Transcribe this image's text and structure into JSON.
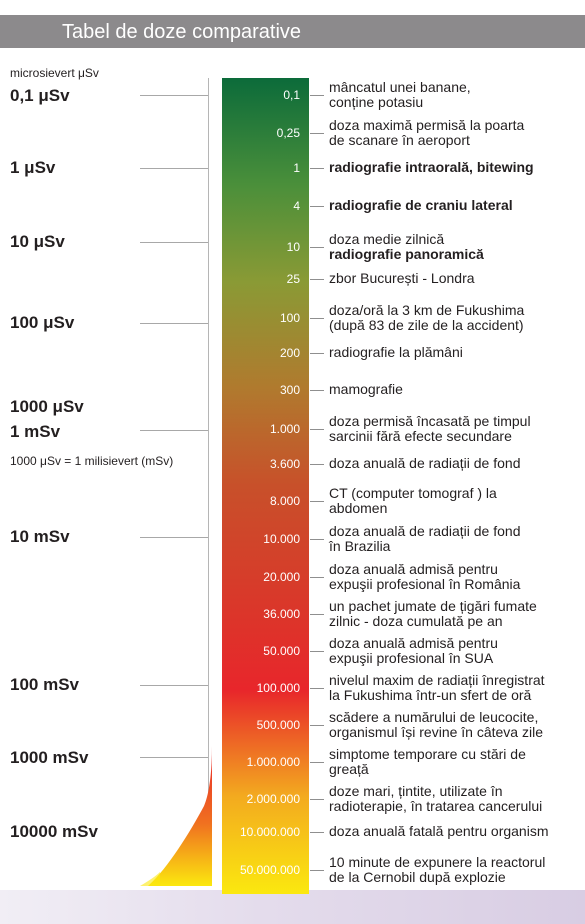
{
  "header": {
    "title": "Tabel de doze comparative"
  },
  "scale": {
    "unit_caption": "microsievert μSv",
    "labels": [
      "0,1 μSv",
      "1 μSv",
      "10 μSv",
      "100 μSv",
      "1000 μSv",
      "1 mSv",
      "10 mSv",
      "100 mSv",
      "1000 mSv",
      "10000 mSv"
    ],
    "conversion_note": "1000 μSv = 1 milisievert (mSv)"
  },
  "chart_data": {
    "type": "table",
    "unit": "μSv",
    "rows": [
      {
        "dose": "0,1",
        "lines": [
          "mâncatul unei banane,",
          "conține potasiu"
        ]
      },
      {
        "dose": "0,25",
        "lines": [
          "doza maximă permisă la poarta",
          "de scanare în aeroport"
        ]
      },
      {
        "dose": "1",
        "lines": [
          "radiografie intraorală, bitewing"
        ],
        "bold": true
      },
      {
        "dose": "4",
        "lines": [
          "radiografie de craniu lateral"
        ],
        "bold": true
      },
      {
        "dose": "10",
        "lines": [
          "doza medie zilnică",
          "radiografie panoramică"
        ],
        "bold_line": 1
      },
      {
        "dose": "25",
        "lines": [
          "zbor București - Londra"
        ]
      },
      {
        "dose": "100",
        "lines": [
          "doza/oră la 3 km de Fukushima",
          "(după 83 de zile de la accident)"
        ]
      },
      {
        "dose": "200",
        "lines": [
          "radiografie la plămâni"
        ]
      },
      {
        "dose": "300",
        "lines": [
          "mamografie"
        ]
      },
      {
        "dose": "1.000",
        "lines": [
          "doza permisă încasată pe timpul",
          "sarcinii fără efecte secundare"
        ]
      },
      {
        "dose": "3.600",
        "lines": [
          "doza anuală de radiații de fond"
        ]
      },
      {
        "dose": "8.000",
        "lines": [
          "CT (computer tomograf ) la",
          "abdomen"
        ]
      },
      {
        "dose": "10.000",
        "lines": [
          "doza anuală de radiații de fond",
          "în Brazilia"
        ]
      },
      {
        "dose": "20.000",
        "lines": [
          "doza anuală admisă pentru",
          "expuşii profesional în România"
        ]
      },
      {
        "dose": "36.000",
        "lines": [
          "un pachet jumate de țigări fumate",
          "zilnic - doza cumulată pe an"
        ]
      },
      {
        "dose": "50.000",
        "lines": [
          "doza anuală admisă pentru",
          "expuşii profesional în SUA"
        ]
      },
      {
        "dose": "100.000",
        "lines": [
          "nivelul maxim de radiații înregistrat",
          "la Fukushima într-un sfert de oră"
        ]
      },
      {
        "dose": "500.000",
        "lines": [
          "scădere a numărului de leucocite,",
          "organismul își revine în câteva zile"
        ]
      },
      {
        "dose": "1.000.000",
        "lines": [
          "simptome temporare cu stări de",
          "greață"
        ]
      },
      {
        "dose": "2.000.000",
        "lines": [
          "doze mari, țintite, utilizate în",
          "radioterapie, în tratarea cancerului"
        ]
      },
      {
        "dose": "10.000.000",
        "lines": [
          "doza anuală fatală pentru organism"
        ]
      },
      {
        "dose": "50.000.000",
        "lines": [
          "10 minute de expunere la reactorul",
          "de la Cernobil după explozie"
        ]
      }
    ]
  },
  "colors": {
    "gradient": [
      "#0c6b3a",
      "#4a8f3a",
      "#8a9a35",
      "#b07a2e",
      "#c8502a",
      "#d83a2a",
      "#e8262b",
      "#f3aa1f",
      "#fbe80f"
    ],
    "title_bar": "#8c8a8c"
  }
}
